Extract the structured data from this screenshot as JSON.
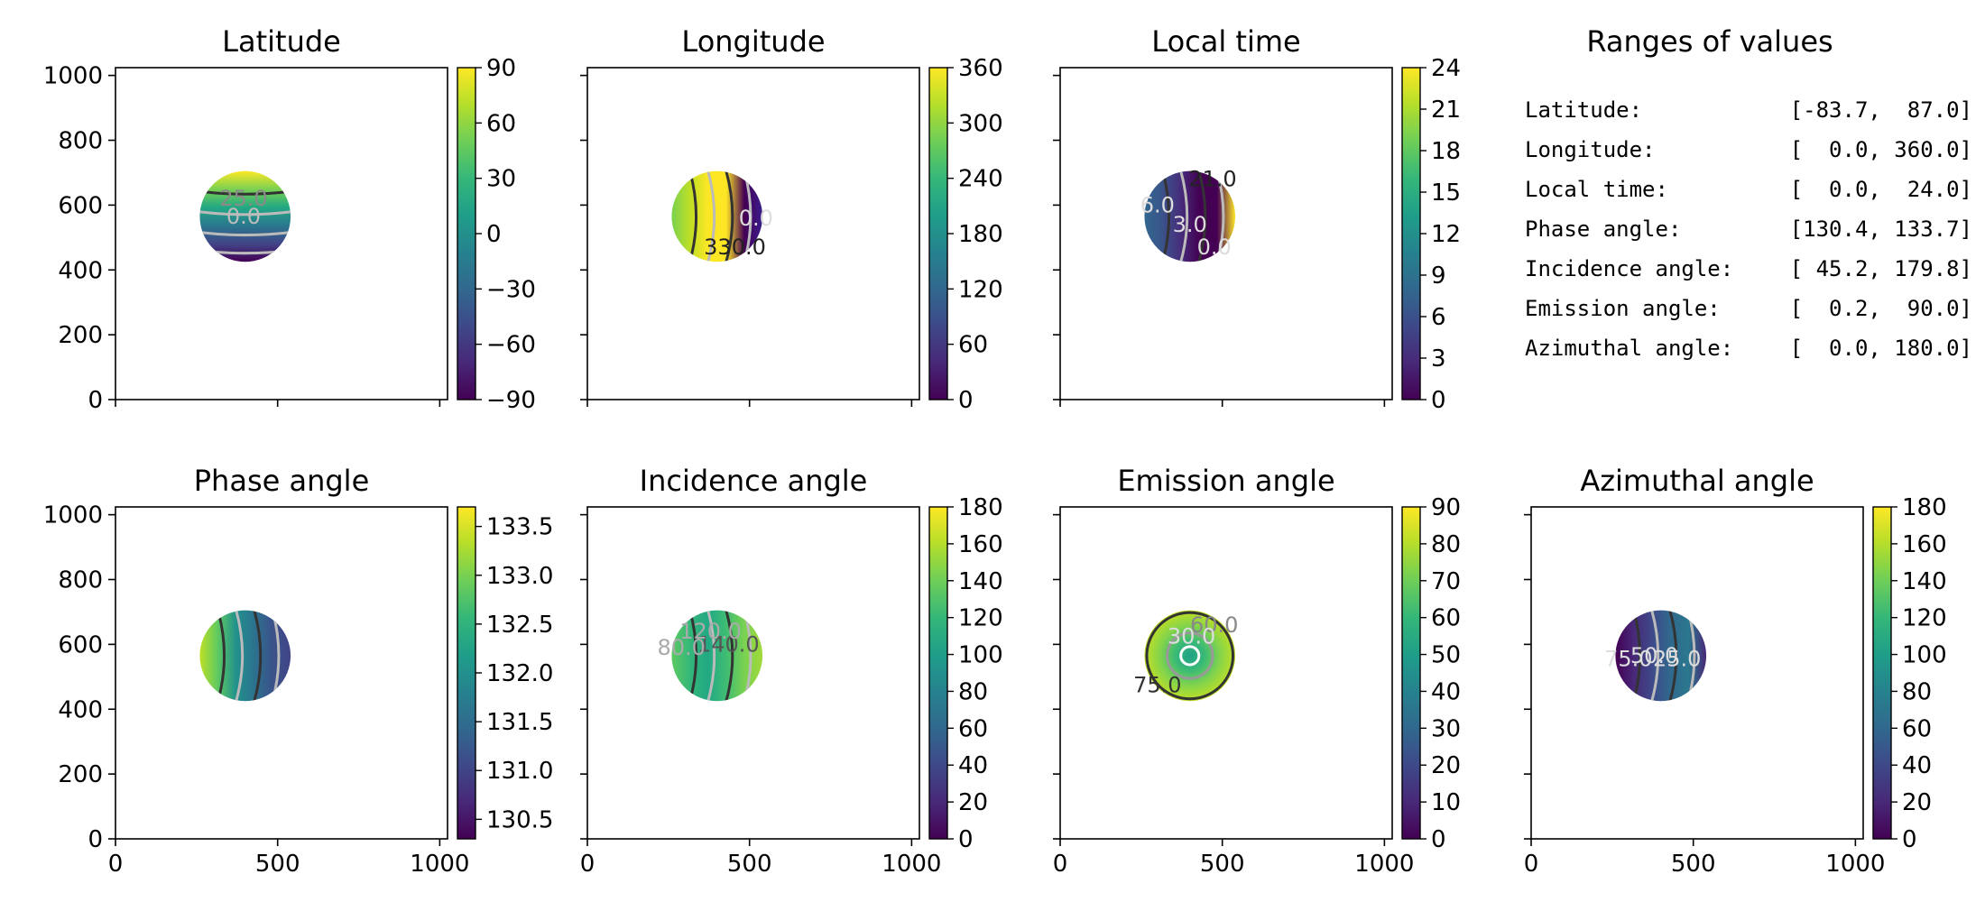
{
  "chart_data": [
    {
      "type": "heatmap",
      "title": "Latitude",
      "xlim": [
        0,
        1024
      ],
      "ylim": [
        0,
        1024
      ],
      "x_ticks": [
        0,
        500,
        1000
      ],
      "y_ticks": [
        0,
        200,
        400,
        600,
        800,
        1000
      ],
      "show_x_tick_labels": false,
      "show_y_tick_labels": true,
      "disk": {
        "cx": 400,
        "cy": 565,
        "r": 140,
        "gradient": "vertical",
        "colors": [
          "#fde725",
          "#7ad151",
          "#22a884",
          "#2a788e",
          "#414487",
          "#440154"
        ]
      },
      "contour_labels": [
        {
          "text": "25.0",
          "x": 395,
          "y": 620,
          "color": "#8a8a8a"
        },
        {
          "text": "0.0",
          "x": 395,
          "y": 565,
          "color": "#bdbdbd"
        }
      ],
      "colorbar": {
        "min": -90,
        "max": 90,
        "ticks": [
          "−90",
          "−60",
          "−30",
          "0",
          "30",
          "60",
          "90"
        ]
      }
    },
    {
      "type": "heatmap",
      "title": "Longitude",
      "xlim": [
        0,
        1024
      ],
      "ylim": [
        0,
        1024
      ],
      "x_ticks": [
        0,
        500,
        1000
      ],
      "y_ticks": [
        0,
        200,
        400,
        600,
        800,
        1000
      ],
      "show_x_tick_labels": false,
      "show_y_tick_labels": false,
      "disk": {
        "cx": 400,
        "cy": 565,
        "r": 140,
        "gradient": "horizontal",
        "colors": [
          "#7ad151",
          "#bddf26",
          "#fde725",
          "#fde725",
          "#440154",
          "#3b1c8c"
        ]
      },
      "contour_labels": [
        {
          "text": "330.0",
          "x": 455,
          "y": 470,
          "color": "#222222"
        },
        {
          "text": "0.0",
          "x": 520,
          "y": 560,
          "color": "#dddddd"
        }
      ],
      "colorbar": {
        "min": 0,
        "max": 360,
        "ticks": [
          "0",
          "60",
          "120",
          "180",
          "240",
          "300",
          "360"
        ]
      }
    },
    {
      "type": "heatmap",
      "title": "Local time",
      "xlim": [
        0,
        1024
      ],
      "ylim": [
        0,
        1024
      ],
      "x_ticks": [
        0,
        500,
        1000
      ],
      "y_ticks": [
        0,
        200,
        400,
        600,
        800,
        1000
      ],
      "show_x_tick_labels": false,
      "show_y_tick_labels": false,
      "disk": {
        "cx": 400,
        "cy": 565,
        "r": 140,
        "gradient": "horizontal",
        "colors": [
          "#31688e",
          "#3b528b",
          "#472d7b",
          "#440154",
          "#440154",
          "#fde725"
        ]
      },
      "contour_labels": [
        {
          "text": "6.0",
          "x": 300,
          "y": 600,
          "color": "#dddddd"
        },
        {
          "text": "3.0",
          "x": 400,
          "y": 540,
          "color": "#dddddd"
        },
        {
          "text": "21.0",
          "x": 470,
          "y": 680,
          "color": "#222222"
        },
        {
          "text": "0.0",
          "x": 475,
          "y": 470,
          "color": "#dddddd"
        }
      ],
      "colorbar": {
        "min": 0,
        "max": 24,
        "ticks": [
          "0",
          "3",
          "6",
          "9",
          "12",
          "15",
          "18",
          "21",
          "24"
        ]
      }
    },
    {
      "type": "heatmap",
      "title": "Phase angle",
      "xlim": [
        0,
        1024
      ],
      "ylim": [
        0,
        1024
      ],
      "x_ticks": [
        0,
        500,
        1000
      ],
      "y_ticks": [
        0,
        200,
        400,
        600,
        800,
        1000
      ],
      "show_x_tick_labels": true,
      "show_y_tick_labels": true,
      "disk": {
        "cx": 400,
        "cy": 565,
        "r": 140,
        "gradient": "horizontal",
        "colors": [
          "#bddf26",
          "#5ec962",
          "#21918c",
          "#2c728e",
          "#3b528b",
          "#414487"
        ]
      },
      "contour_labels": [],
      "colorbar": {
        "min": 130.3,
        "max": 133.7,
        "ticks": [
          "130.5",
          "131.0",
          "131.5",
          "132.0",
          "132.5",
          "133.0",
          "133.5"
        ]
      }
    },
    {
      "type": "heatmap",
      "title": "Incidence angle",
      "xlim": [
        0,
        1024
      ],
      "ylim": [
        0,
        1024
      ],
      "x_ticks": [
        0,
        500,
        1000
      ],
      "y_ticks": [
        0,
        200,
        400,
        600,
        800,
        1000
      ],
      "show_x_tick_labels": true,
      "show_y_tick_labels": false,
      "disk": {
        "cx": 400,
        "cy": 565,
        "r": 140,
        "gradient": "horizontal",
        "colors": [
          "#5ec962",
          "#35b779",
          "#22a884",
          "#3fbc73",
          "#7ad151",
          "#a0da39"
        ]
      },
      "contour_labels": [
        {
          "text": "140.0",
          "x": 435,
          "y": 600,
          "color": "#555555"
        },
        {
          "text": "120.0",
          "x": 380,
          "y": 640,
          "color": "#aaaaaa"
        },
        {
          "text": "80.0",
          "x": 290,
          "y": 590,
          "color": "#aaaaaa"
        }
      ],
      "colorbar": {
        "min": 0,
        "max": 180,
        "ticks": [
          "0",
          "20",
          "40",
          "60",
          "80",
          "100",
          "120",
          "140",
          "160",
          "180"
        ]
      }
    },
    {
      "type": "heatmap",
      "title": "Emission angle",
      "xlim": [
        0,
        1024
      ],
      "ylim": [
        0,
        1024
      ],
      "x_ticks": [
        0,
        500,
        1000
      ],
      "y_ticks": [
        0,
        200,
        400,
        600,
        800,
        1000
      ],
      "show_x_tick_labels": true,
      "show_y_tick_labels": false,
      "disk": {
        "cx": 400,
        "cy": 565,
        "r": 140,
        "gradient": "radial",
        "colors": [
          "#1fa187",
          "#3bbb75",
          "#84d44b",
          "#c2df23"
        ]
      },
      "contour_labels": [
        {
          "text": "60.0",
          "x": 475,
          "y": 660,
          "color": "#888888"
        },
        {
          "text": "30.0",
          "x": 405,
          "y": 625,
          "color": "#dddddd"
        },
        {
          "text": "75.0",
          "x": 300,
          "y": 475,
          "color": "#333333"
        }
      ],
      "colorbar": {
        "min": 0,
        "max": 90,
        "ticks": [
          "0",
          "10",
          "20",
          "30",
          "40",
          "50",
          "60",
          "70",
          "80",
          "90"
        ]
      }
    },
    {
      "type": "heatmap",
      "title": "Azimuthal angle",
      "xlim": [
        0,
        1024
      ],
      "ylim": [
        0,
        1024
      ],
      "x_ticks": [
        0,
        500,
        1000
      ],
      "y_ticks": [
        0,
        200,
        400,
        600,
        800,
        1000
      ],
      "show_x_tick_labels": true,
      "show_y_tick_labels": false,
      "disk": {
        "cx": 400,
        "cy": 565,
        "r": 140,
        "gradient": "horizontal",
        "colors": [
          "#440154",
          "#482878",
          "#3e4989",
          "#31688e",
          "#2a788e",
          "#482878"
        ]
      },
      "contour_labels": [
        {
          "text": "75.0",
          "x": 300,
          "y": 555,
          "color": "#dddddd"
        },
        {
          "text": "50.0",
          "x": 380,
          "y": 565,
          "color": "#dddddd"
        },
        {
          "text": "25.0",
          "x": 450,
          "y": 555,
          "color": "#dddddd"
        }
      ],
      "colorbar": {
        "min": 0,
        "max": 180,
        "ticks": [
          "0",
          "20",
          "40",
          "60",
          "80",
          "100",
          "120",
          "140",
          "160",
          "180"
        ]
      }
    }
  ],
  "text_panel": {
    "title": "Ranges of values",
    "rows": [
      {
        "label": "Latitude:",
        "value": "[-83.7,  87.0]"
      },
      {
        "label": "Longitude:",
        "value": "[  0.0, 360.0]"
      },
      {
        "label": "Local time:",
        "value": "[  0.0,  24.0]"
      },
      {
        "label": "Phase angle:",
        "value": "[130.4, 133.7]"
      },
      {
        "label": "Incidence angle:",
        "value": "[ 45.2, 179.8]"
      },
      {
        "label": "Emission angle:",
        "value": "[  0.2,  90.0]"
      },
      {
        "label": "Azimuthal angle:",
        "value": "[  0.0, 180.0]"
      }
    ]
  },
  "colors": {
    "viridis": [
      "#440154",
      "#482878",
      "#3e4989",
      "#31688e",
      "#26828e",
      "#1f9e89",
      "#35b779",
      "#6ece58",
      "#b5de2b",
      "#fde725"
    ]
  }
}
